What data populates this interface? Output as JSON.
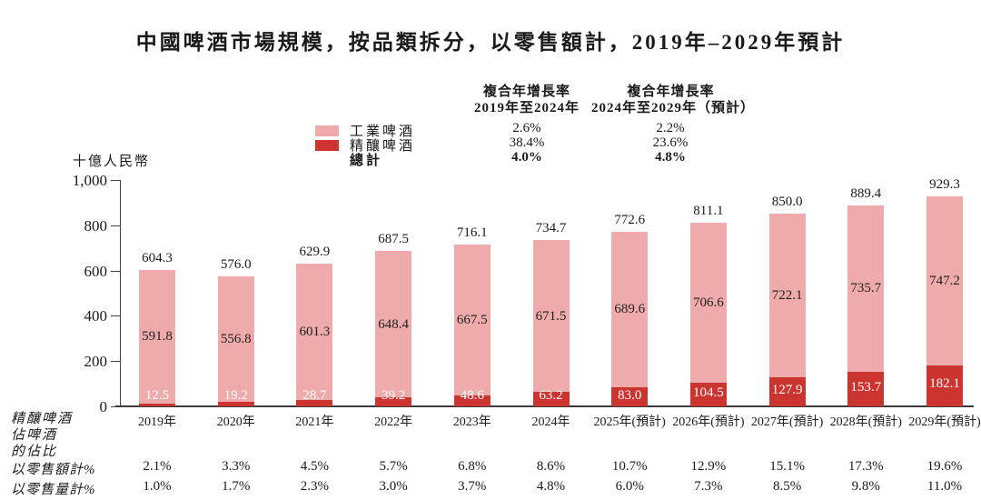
{
  "title": "中國啤酒市場規模，按品類拆分，以零售額計，2019年–2029年預計",
  "colors": {
    "industrial_pink": "#EFABAB",
    "craft_red": "#CC3430",
    "axis": "#444444",
    "text": "#1a1a1a"
  },
  "cagr_table": {
    "col1_header": [
      "複合年增長率",
      "2019年至2024年"
    ],
    "col2_header": [
      "複合年增長率",
      "2024年至2029年（預計）"
    ],
    "rows": [
      {
        "label": "工業啤酒",
        "col1": "2.6%",
        "col2": "2.2%",
        "bold": false,
        "swatch_color": "#EFABAB"
      },
      {
        "label": "精釀啤酒",
        "col1": "38.4%",
        "col2": "23.6%",
        "bold": false,
        "swatch_color": "#CC3430"
      },
      {
        "label": "總計",
        "col1": "4.0%",
        "col2": "4.8%",
        "bold": true,
        "swatch_color": null
      }
    ]
  },
  "y_axis": {
    "unit_label": "十億人民幣",
    "ticks": [
      {
        "label": "1,000",
        "value": 1000
      },
      {
        "label": "800",
        "value": 800
      },
      {
        "label": "600",
        "value": 600
      },
      {
        "label": "400",
        "value": 400
      },
      {
        "label": "200",
        "value": 200
      },
      {
        "label": "0",
        "value": 0
      }
    ]
  },
  "chart_data": {
    "type": "bar",
    "stacked": true,
    "title": "中國啤酒市場規模，按品類拆分，以零售額計，2019年–2029年預計",
    "ylabel": "十億人民幣",
    "ylim": [
      0,
      1000
    ],
    "grid": false,
    "legend_position": "top-left",
    "categories": [
      "2019年",
      "2020年",
      "2021年",
      "2022年",
      "2023年",
      "2024年",
      "2025年(預計)",
      "2026年(預計)",
      "2027年(預計)",
      "2028年(預計)",
      "2029年(預計)"
    ],
    "series": [
      {
        "name": "工業啤酒",
        "color": "#EFABAB",
        "values": [
          591.8,
          556.8,
          601.3,
          648.4,
          667.5,
          671.5,
          689.6,
          706.6,
          722.1,
          735.7,
          747.2
        ]
      },
      {
        "name": "精釀啤酒",
        "color": "#CC3430",
        "values": [
          12.5,
          19.2,
          28.7,
          39.2,
          48.6,
          63.2,
          83.0,
          104.5,
          127.9,
          153.7,
          182.1
        ]
      }
    ],
    "totals": [
      604.3,
      576.0,
      629.9,
      687.5,
      716.1,
      734.7,
      772.6,
      811.1,
      850.0,
      889.4,
      929.3
    ],
    "cagr_2019_2024": {
      "工業啤酒": "2.6%",
      "精釀啤酒": "38.4%",
      "總計": "4.0%"
    },
    "cagr_2024_2029": {
      "工業啤酒": "2.2%",
      "精釀啤酒": "23.6%",
      "總計": "4.8%"
    }
  },
  "footer_table": {
    "group_label_lines": [
      "精釀啤酒",
      "佔啤酒",
      "的佔比"
    ],
    "rows": [
      {
        "label": "以零售額計%",
        "values": [
          "2.1%",
          "3.3%",
          "4.5%",
          "5.7%",
          "6.8%",
          "8.6%",
          "10.7%",
          "12.9%",
          "15.1%",
          "17.3%",
          "19.6%"
        ]
      },
      {
        "label": "以零售量計%",
        "values": [
          "1.0%",
          "1.7%",
          "2.3%",
          "3.0%",
          "3.7%",
          "4.8%",
          "6.0%",
          "7.3%",
          "8.5%",
          "9.8%",
          "11.0%"
        ]
      }
    ]
  }
}
